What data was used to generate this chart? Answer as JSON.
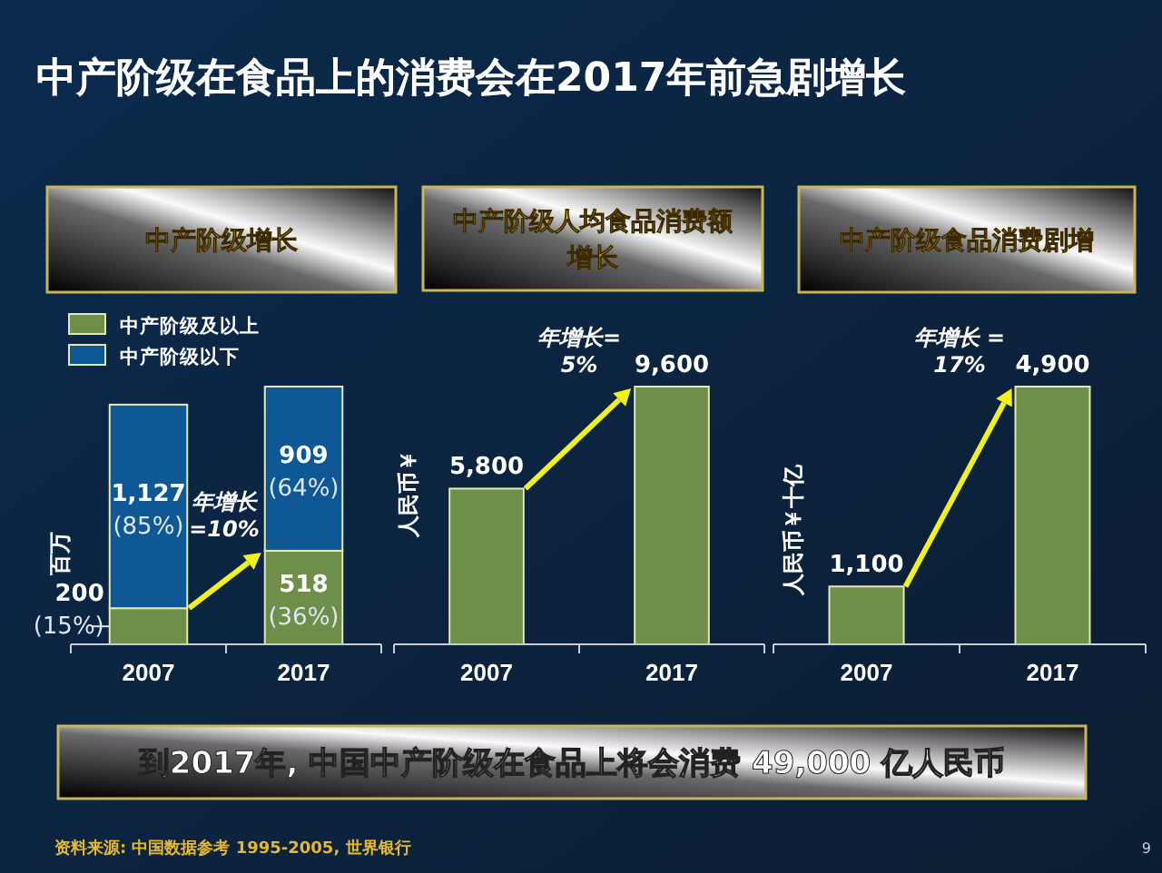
{
  "chart_data": [
    {
      "type": "bar",
      "title": "中产阶级增长",
      "categories": [
        "2007",
        "2017"
      ],
      "stacked": true,
      "ylabel": "百万",
      "legend": "top left",
      "series": [
        {
          "name": "中产阶级及以上",
          "color": "#6e8f4a",
          "values": [
            200,
            518
          ],
          "value_labels": [
            "200 (15%)",
            "518 (36%)"
          ]
        },
        {
          "name": "中产阶级以下",
          "color": "#0e5896",
          "values": [
            1127,
            909
          ],
          "value_labels": [
            "1,127 (85%)",
            "909 (64%)"
          ]
        }
      ],
      "annotations": [
        "年增长\n=10%"
      ]
    },
    {
      "type": "bar",
      "title": "中产阶级人均食品消费额增长",
      "categories": [
        "2007",
        "2017"
      ],
      "ylabel": "人民币￥",
      "values": [
        5800,
        9600
      ],
      "color": "#6e8f4a",
      "value_labels": [
        "5,800",
        "9,600"
      ],
      "annotations": [
        "年增长=\n5%"
      ]
    },
    {
      "type": "bar",
      "title": "中产阶级食品消费剧增",
      "categories": [
        "2007",
        "2017"
      ],
      "ylabel": "人民币￥十亿",
      "values": [
        1100,
        4900
      ],
      "color": "#6e8f4a",
      "value_labels": [
        "1,100",
        "4,900"
      ],
      "annotations": [
        "年增长 =\n17%"
      ]
    },
    {
      "type": "other",
      "title": "中产阶级在食品上的消费会在2017年前急剧增长",
      "annotations": [
        "到2017年, 中国中产阶级在食品上将会消费 49,000 亿人民币",
        "资料来源: 中国数据参考 1995-2005, 世界银行",
        "9"
      ]
    }
  ]
}
